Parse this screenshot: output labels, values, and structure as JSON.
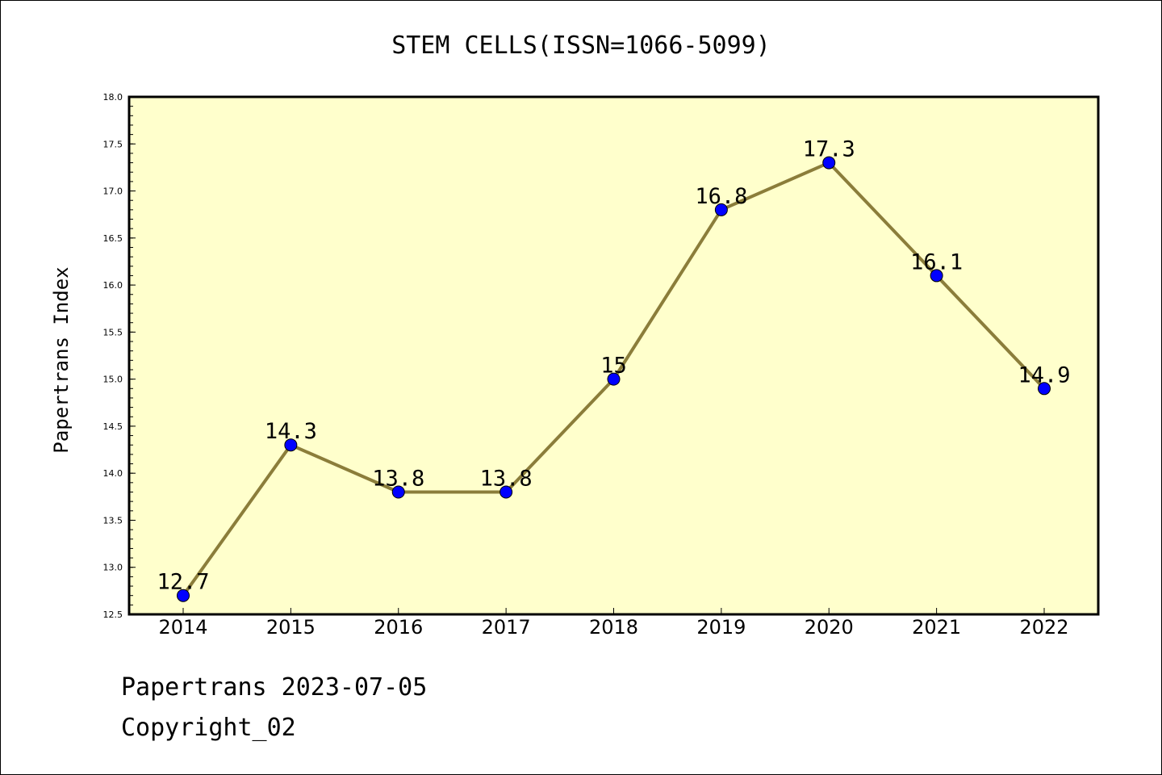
{
  "footer": {
    "line1": "Papertrans 2023-07-05",
    "line2": "Copyright_02"
  },
  "colors": {
    "plot_background": "#ffffcc",
    "line": "#8b7d3a",
    "marker": "#0000ff",
    "frame": "#000000"
  },
  "chart_data": {
    "type": "line",
    "title": "STEM CELLS(ISSN=1066-5099)",
    "xlabel": "",
    "ylabel": "Papertrans Index",
    "categories": [
      "2014",
      "2015",
      "2016",
      "2017",
      "2018",
      "2019",
      "2020",
      "2021",
      "2022"
    ],
    "series": [
      {
        "values": [
          12.7,
          14.3,
          13.8,
          13.8,
          15.0,
          16.8,
          17.3,
          16.1,
          14.9
        ],
        "labels": [
          "12.7",
          "14.3",
          "13.8",
          "13.8",
          "15",
          "16.8",
          "17.3",
          "16.1",
          "14.9"
        ]
      }
    ],
    "ylim": [
      12.5,
      18.0
    ],
    "yticks": [
      "12.5",
      "13.0",
      "13.5",
      "14.0",
      "14.5",
      "15.0",
      "15.5",
      "16.0",
      "16.5",
      "17.0",
      "17.5",
      "18.0"
    ],
    "grid": false,
    "legend": "none"
  }
}
